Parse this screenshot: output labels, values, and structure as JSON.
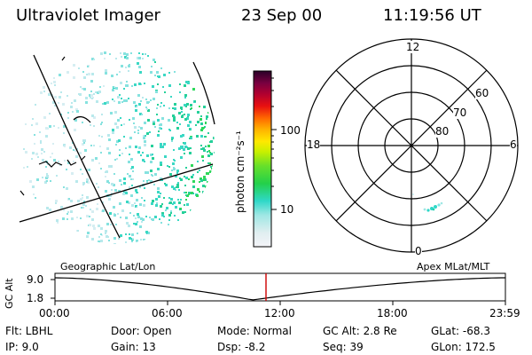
{
  "header": {
    "title": "Ultraviolet Imager",
    "date": "23 Sep 00",
    "time": "11:19:56 UT"
  },
  "colorbar": {
    "unit_label": "photon cm⁻²s⁻¹",
    "ticks": [
      "100",
      "10"
    ]
  },
  "polar_plot": {
    "mlt_labels": {
      "top": "12",
      "left": "18",
      "right": "6",
      "bottom": "0"
    },
    "lat_labels": [
      "60",
      "70",
      "80"
    ]
  },
  "timeline": {
    "y_axis_label": "GC Alt",
    "y_ticks": [
      "9.0",
      "1.8"
    ],
    "left_caption": "Geographic Lat/Lon",
    "right_caption": "Apex MLat/MLT",
    "x_ticks": [
      "00:00",
      "06:00",
      "12:00",
      "18:00",
      "23:59"
    ],
    "marker_color": "#cc0000"
  },
  "info": {
    "filter": "Flt: LBHL",
    "ip": "IP:  9.0",
    "door": "Door: Open",
    "gain": "Gain: 13",
    "mode": "Mode: Normal",
    "dsp": "Dsp:     -8.2",
    "gc_alt": "GC Alt: 2.8 Re",
    "seq": "Seq: 39",
    "glat": "GLat:   -68.3",
    "glon": "GLon:  172.5"
  }
}
